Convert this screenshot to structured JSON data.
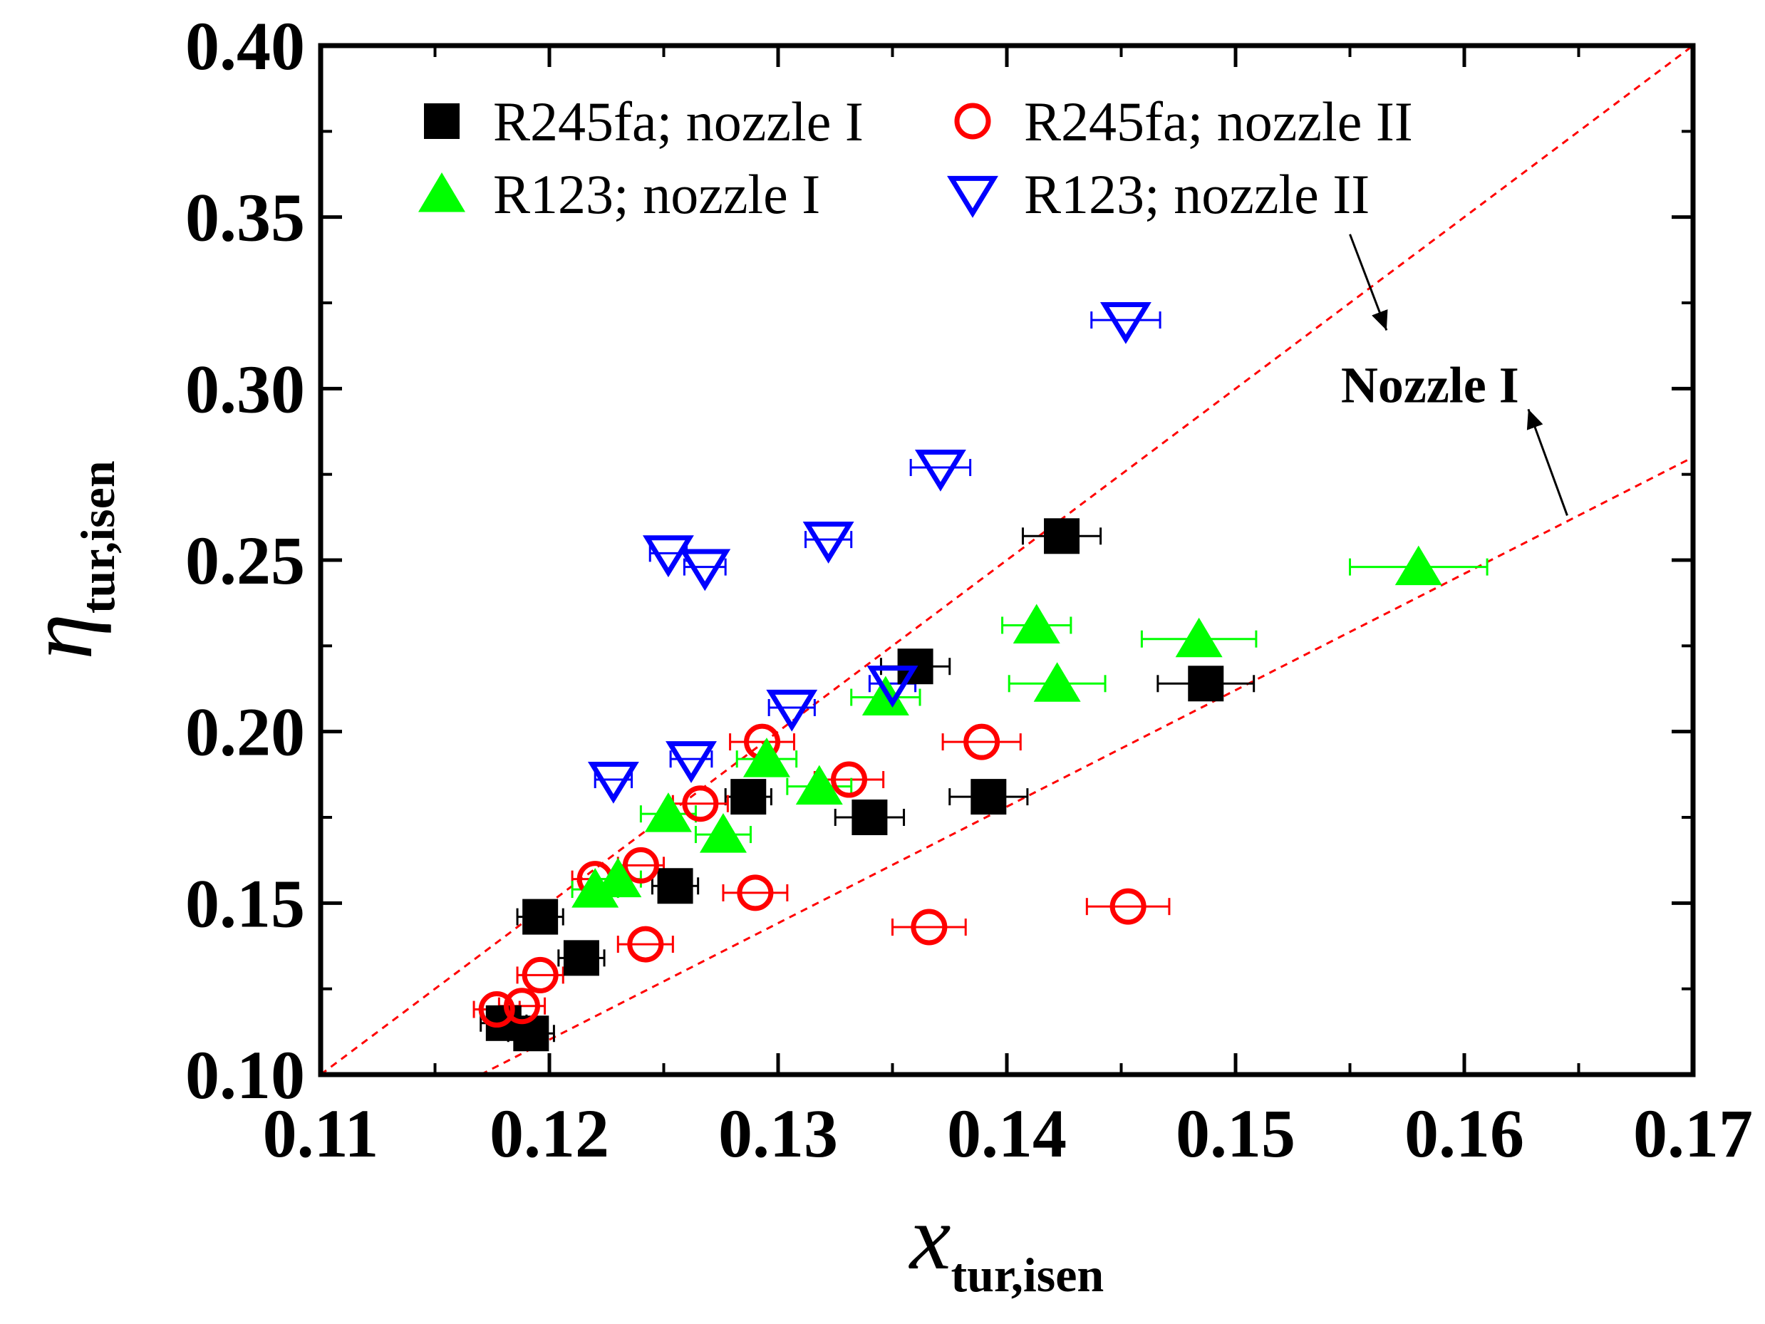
{
  "chart_data": {
    "type": "scatter",
    "xlabel": {
      "main": "x",
      "sub": "tur,isen"
    },
    "ylabel": {
      "main": "η",
      "sub": "tur,isen"
    },
    "xlim": [
      0.11,
      0.17
    ],
    "ylim": [
      0.1,
      0.4
    ],
    "xticks": [
      "0.11",
      "0.12",
      "0.13",
      "0.14",
      "0.15",
      "0.16",
      "0.17"
    ],
    "yticks": [
      "0.10",
      "0.15",
      "0.20",
      "0.25",
      "0.30",
      "0.35",
      "0.40"
    ],
    "legend_position": "top-left",
    "series": [
      {
        "name": "R245fa; nozzle I",
        "marker": "filled-square",
        "color": "#000000",
        "x": [
          0.118,
          0.1192,
          0.1196,
          0.1214,
          0.1255,
          0.1287,
          0.134,
          0.136,
          0.1392,
          0.1424,
          0.1487
        ],
        "y": [
          0.115,
          0.112,
          0.146,
          0.134,
          0.155,
          0.181,
          0.175,
          0.219,
          0.181,
          0.257,
          0.214
        ],
        "xerr": [
          0.001,
          0.001,
          0.001,
          0.001,
          0.001,
          0.001,
          0.0015,
          0.0015,
          0.0017,
          0.0017,
          0.0021
        ]
      },
      {
        "name": "R245fa; nozzle II",
        "marker": "open-circle",
        "color": "#ff0000",
        "x": [
          0.1177,
          0.1188,
          0.1196,
          0.122,
          0.124,
          0.1242,
          0.1266,
          0.129,
          0.1293,
          0.1331,
          0.1366,
          0.1389,
          0.1453
        ],
        "y": [
          0.119,
          0.12,
          0.129,
          0.157,
          0.161,
          0.138,
          0.179,
          0.153,
          0.197,
          0.186,
          0.143,
          0.197,
          0.149
        ],
        "xerr": [
          0.001,
          0.001,
          0.001,
          0.001,
          0.001,
          0.0012,
          0.0012,
          0.0014,
          0.0014,
          0.0015,
          0.0016,
          0.0017,
          0.0018
        ]
      },
      {
        "name": "R123; nozzle I",
        "marker": "filled-triangle-up",
        "color": "#00ff00",
        "x": [
          0.122,
          0.123,
          0.1252,
          0.1276,
          0.1295,
          0.1318,
          0.1347,
          0.1413,
          0.1422,
          0.1484,
          0.158
        ],
        "y": [
          0.154,
          0.157,
          0.176,
          0.17,
          0.192,
          0.184,
          0.21,
          0.231,
          0.214,
          0.227,
          0.248
        ],
        "xerr": [
          0.001,
          0.001,
          0.0012,
          0.0012,
          0.0013,
          0.0014,
          0.0015,
          0.0015,
          0.0021,
          0.0025,
          0.003
        ]
      },
      {
        "name": "R123; nozzle II",
        "marker": "open-triangle-down",
        "color": "#0000ff",
        "x": [
          0.1228,
          0.1252,
          0.1262,
          0.1268,
          0.1306,
          0.1322,
          0.135,
          0.1371,
          0.1452
        ],
        "y": [
          0.186,
          0.252,
          0.192,
          0.248,
          0.207,
          0.256,
          0.214,
          0.277,
          0.32
        ],
        "xerr": [
          0.0008,
          0.0008,
          0.0009,
          0.0009,
          0.001,
          0.001,
          0.001,
          0.0013,
          0.0015
        ]
      }
    ],
    "reference_lines": [
      {
        "from": [
          0.11,
          0.1
        ],
        "to": [
          0.17,
          0.4
        ],
        "style": "dashed",
        "color": "#ff0000"
      },
      {
        "from": [
          0.117,
          0.1
        ],
        "to": [
          0.17,
          0.28
        ],
        "style": "dashed",
        "color": "#ff0000"
      }
    ],
    "annotation": {
      "text": "Nozzle I",
      "at": [
        0.1585,
        0.296
      ],
      "arrows": [
        {
          "from": [
            0.155,
            0.345
          ],
          "to": [
            0.1566,
            0.317
          ]
        },
        {
          "from": [
            0.1645,
            0.263
          ],
          "to": [
            0.1628,
            0.294
          ]
        }
      ]
    }
  }
}
